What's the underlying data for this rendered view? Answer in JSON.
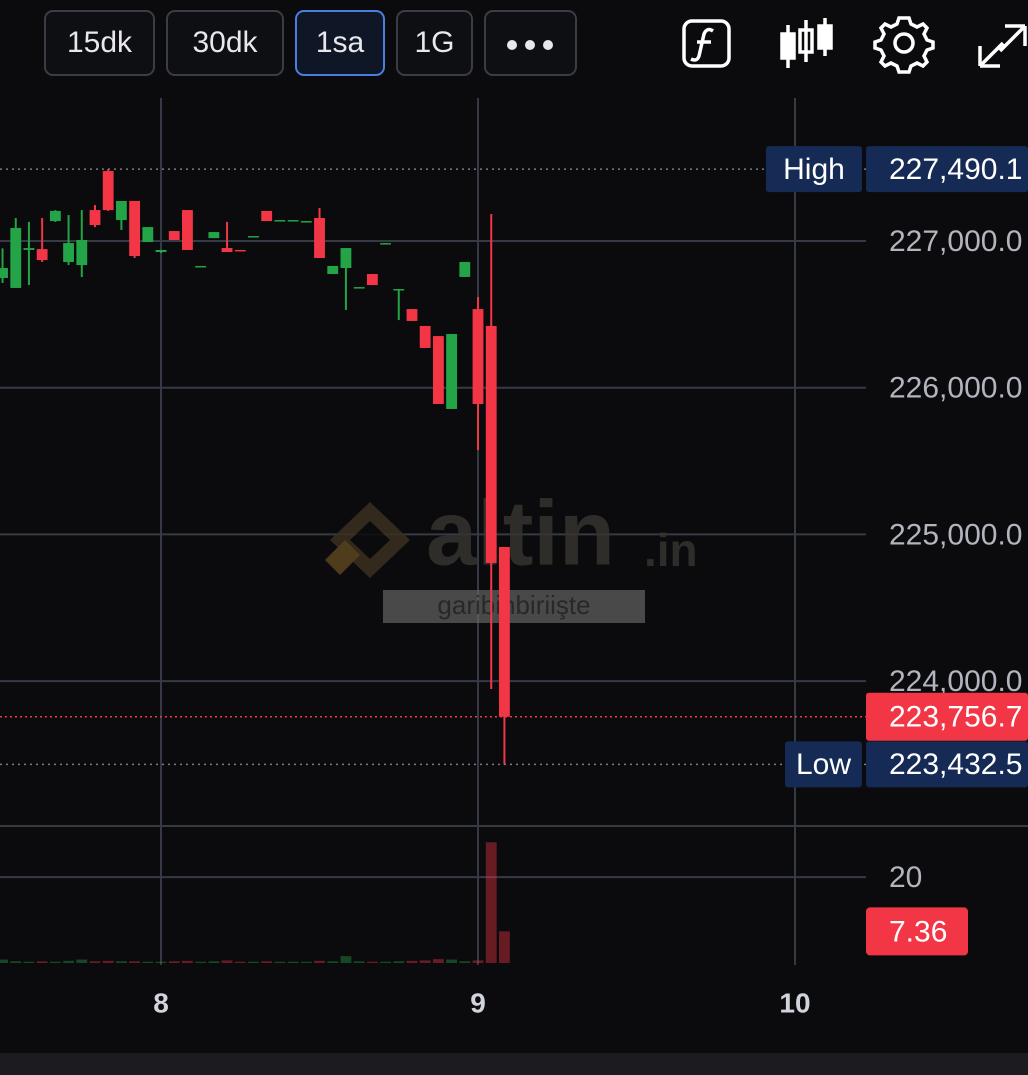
{
  "toolbar": {
    "intervals": [
      "15dk",
      "30dk",
      "1sa",
      "1G"
    ]
  },
  "watermark": {
    "text": "altin",
    "suffix": ".in",
    "caption": "garibinbiriişte"
  },
  "chart_data": {
    "type": "candlestick",
    "x": [
      7.5,
      7.5417,
      7.5833,
      7.625,
      7.6667,
      7.7083,
      7.75,
      7.7917,
      7.8333,
      7.875,
      7.9167,
      7.9583,
      8,
      8.0417,
      8.0833,
      8.125,
      8.1667,
      8.2083,
      8.25,
      8.2917,
      8.3333,
      8.375,
      8.4167,
      8.4583,
      8.5,
      8.5417,
      8.5833,
      8.625,
      8.6667,
      8.7083,
      8.75,
      8.7917,
      8.8333,
      8.875,
      8.9167,
      8.9583,
      9,
      9.0417,
      9.0833
    ],
    "open": [
      226748,
      226680,
      226939,
      226945,
      227136,
      226857,
      226836,
      227211,
      227477,
      227143,
      227273,
      226993,
      226925,
      227068,
      227211,
      226823,
      227020,
      226952,
      226939,
      227027,
      227205,
      227136,
      227136,
      227130,
      227157,
      226775,
      226816,
      226680,
      226775,
      226980,
      226666,
      226536,
      226421,
      226352,
      225855,
      226755,
      226536,
      226421,
      224914
    ],
    "high": [
      226950,
      227157,
      227130,
      227157,
      227211,
      227177,
      227211,
      227245,
      227490.1,
      227273,
      227273,
      227095,
      226939,
      227068,
      227211,
      226830,
      227061,
      227130,
      226939,
      227034,
      227205,
      227143,
      227143,
      227136,
      227225,
      226830,
      226952,
      226686,
      226775,
      226986,
      226673,
      226536,
      226421,
      226352,
      226366,
      226857,
      226618,
      227184,
      224914
    ],
    "low": [
      226714,
      226680,
      226700,
      226857,
      227130,
      226836,
      226755,
      227095,
      227205,
      227075,
      226884,
      226993,
      226918,
      227007,
      226939,
      226823,
      227020,
      226925,
      226932,
      227027,
      227136,
      227136,
      227136,
      227130,
      226884,
      226775,
      226530,
      226680,
      226700,
      226980,
      226461,
      226455,
      226271,
      225889,
      225855,
      226755,
      225575,
      223946,
      223432.5
    ],
    "close": [
      226816,
      227089,
      226952,
      226870,
      227205,
      226986,
      227007,
      227109,
      227211,
      227273,
      226898,
      227095,
      226939,
      227007,
      226939,
      226830,
      227061,
      226925,
      226932,
      227034,
      227136,
      227143,
      227143,
      227136,
      226884,
      226830,
      226952,
      226686,
      226700,
      226986,
      226673,
      226455,
      226271,
      225889,
      226366,
      226857,
      225889,
      224805,
      223756.7
    ],
    "volume": [
      0.8,
      0.4,
      0.3,
      0.4,
      0.3,
      0.5,
      0.8,
      0.4,
      0.5,
      0.4,
      0.4,
      0.3,
      0.3,
      0.4,
      0.5,
      0.3,
      0.4,
      0.6,
      0.3,
      0.3,
      0.4,
      0.3,
      0.3,
      0.3,
      0.5,
      0.4,
      1.6,
      0.4,
      0.3,
      0.3,
      0.4,
      0.5,
      0.6,
      0.9,
      0.8,
      0.4,
      0.6,
      28.1,
      7.36
    ],
    "up_color": "#22a447",
    "down_color": "#f23645",
    "xlim": [
      7.492,
      10.224
    ],
    "xticks": [
      8,
      9,
      10
    ],
    "ylim": [
      223012,
      227975
    ],
    "yticks": [
      {
        "value": 224000,
        "label": "224,000.0"
      },
      {
        "value": 225000,
        "label": "225,000.0"
      },
      {
        "value": 226000,
        "label": "226,000.0"
      },
      {
        "value": 227000,
        "label": "227,000.0"
      }
    ],
    "volume_ylim": [
      0,
      31.9
    ],
    "volume_yticks": [
      20
    ],
    "grid": true,
    "annotations": [
      {
        "label": "High",
        "value": 227490.1,
        "value_label": "227,490.1"
      },
      {
        "label": "Low",
        "value": 223432.5,
        "value_label": "223,432.5"
      }
    ],
    "last_price": {
      "value": 223756.7,
      "label": "223,756.7"
    }
  }
}
